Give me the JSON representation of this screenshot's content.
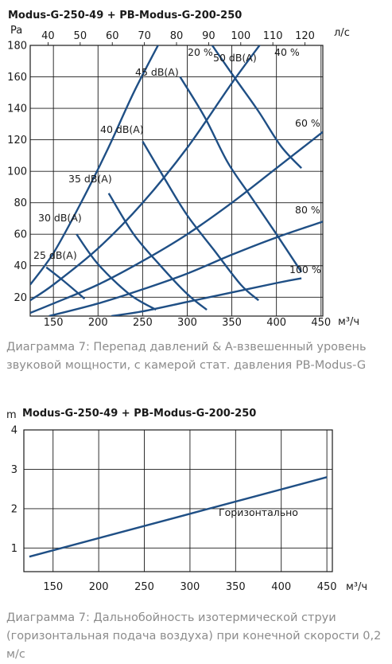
{
  "chart_data": [
    {
      "type": "line",
      "title": "Modus-G-250-49 + PB-Modus-G-200-250",
      "ylabel": "Pa",
      "xlabel": "м³/ч",
      "x2label": "л/с",
      "xlim": [
        124,
        452
      ],
      "ylim": [
        8,
        180
      ],
      "x_ticks": [
        150,
        200,
        250,
        300,
        350,
        400,
        450
      ],
      "x_tick_labels": [
        "150",
        "200",
        "250",
        "300",
        "350",
        "400",
        "450"
      ],
      "x2_ticks": [
        40,
        50,
        60,
        70,
        80,
        90,
        100,
        110,
        120
      ],
      "x2_tick_labels": [
        "40",
        "50",
        "60",
        "70",
        "80",
        "90",
        "100",
        "110",
        "120"
      ],
      "y_ticks": [
        20,
        40,
        60,
        80,
        100,
        120,
        140,
        160,
        180
      ],
      "y_tick_labels": [
        "20",
        "40",
        "60",
        "80",
        "100",
        "120",
        "140",
        "160",
        "180"
      ],
      "grid": true,
      "pressure_series": [
        {
          "name": "20 %",
          "x": [
            124,
            150,
            180,
            210,
            240,
            270
          ],
          "y": [
            28,
            48,
            79,
            113,
            150,
            183
          ]
        },
        {
          "name": "40 %",
          "x": [
            124,
            150,
            200,
            250,
            300,
            350,
            385
          ],
          "y": [
            18,
            28,
            51,
            80,
            115,
            156,
            183
          ]
        },
        {
          "name": "60 %",
          "x": [
            124,
            150,
            200,
            250,
            300,
            350,
            400,
            452
          ],
          "y": [
            10,
            16,
            28,
            43,
            60,
            80,
            102,
            125
          ]
        },
        {
          "name": "80 %",
          "x": [
            145,
            200,
            250,
            300,
            350,
            400,
            452
          ],
          "y": [
            8,
            16,
            25,
            35,
            47,
            58,
            68
          ]
        },
        {
          "name": "100 %",
          "x": [
            215,
            250,
            300,
            350,
            400,
            428
          ],
          "y": [
            8,
            11,
            17,
            23,
            29,
            32
          ]
        }
      ],
      "sound_series": [
        {
          "name": "25 dB(A)",
          "x": [
            142,
            160,
            185
          ],
          "y": [
            39,
            31,
            19
          ]
        },
        {
          "name": "30 dB(A)",
          "x": [
            176,
            200,
            235,
            265
          ],
          "y": [
            60,
            41,
            22,
            12
          ]
        },
        {
          "name": "35 dB(A)",
          "x": [
            212,
            240,
            270,
            300,
            322
          ],
          "y": [
            86,
            60,
            40,
            22,
            12
          ]
        },
        {
          "name": "40 dB(A)",
          "x": [
            250,
            275,
            300,
            330,
            360,
            380
          ],
          "y": [
            119,
            95,
            72,
            50,
            28,
            18
          ]
        },
        {
          "name": "45 dB(A)",
          "x": [
            292,
            320,
            345,
            370,
            400,
            428
          ],
          "y": [
            160,
            134,
            106,
            85,
            60,
            36
          ]
        },
        {
          "name": "50 dB(A)",
          "x": [
            328,
            355,
            380,
            405,
            428
          ],
          "y": [
            180,
            158,
            138,
            116,
            102
          ]
        }
      ],
      "caption": "Диаграмма 7: Перепад давлений & А-взвешенный уровень звуковой мощности,  с камерой стат. давления PB-Modus-G"
    },
    {
      "type": "line",
      "title": "Modus-G-250-49 + PB-Modus-G-200-250",
      "ylabel": "m",
      "xlabel": "м³/ч",
      "xlim": [
        118,
        456
      ],
      "ylim": [
        0.4,
        4.0
      ],
      "x_ticks": [
        150,
        200,
        250,
        300,
        350,
        400,
        450
      ],
      "x_tick_labels": [
        "150",
        "200",
        "250",
        "300",
        "350",
        "400",
        "450"
      ],
      "y_ticks": [
        1,
        2,
        3,
        4
      ],
      "y_tick_labels": [
        "1",
        "2",
        "3",
        "4"
      ],
      "grid": true,
      "series": [
        {
          "name": "Горизонтально",
          "x": [
            124,
            450
          ],
          "y": [
            0.78,
            2.8
          ]
        }
      ],
      "caption": "Диаграмма 7: Дальнобойность изотермической струи (горизонтальная подача воздуха) при конечной скорости 0,2 м/с"
    }
  ]
}
